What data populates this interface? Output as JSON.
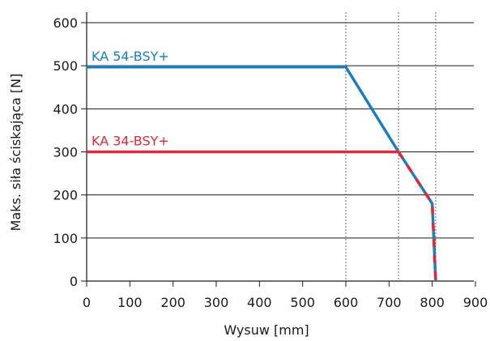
{
  "chart_data": {
    "type": "line",
    "title": "",
    "xlabel": "Wysuw [mm]",
    "ylabel": "Maks. siła ściskająca [N]",
    "xlim": [
      0,
      950
    ],
    "ylim": [
      0,
      600
    ],
    "x_ticks": [
      0,
      100,
      200,
      300,
      400,
      500,
      600,
      700,
      800,
      900
    ],
    "y_ticks": [
      0,
      100,
      200,
      300,
      400,
      500,
      600
    ],
    "x_tick_labels": [
      "0",
      "100",
      "200",
      "300",
      "400",
      "500",
      "600",
      "700",
      "800",
      "900"
    ],
    "y_tick_labels": [
      "0",
      "100",
      "200",
      "300",
      "400",
      "500",
      "600"
    ],
    "grid": {
      "horizontal": true,
      "vertical": false
    },
    "vertical_markers": [
      600,
      722,
      808
    ],
    "series": [
      {
        "name": "KA 54-BSY+",
        "color": "#1a7fc1",
        "x": [
          0,
          600,
          722,
          800,
          808
        ],
        "y": [
          497,
          497,
          300,
          180,
          0
        ]
      },
      {
        "name": "KA 34-BSY+",
        "color": "#e2283c",
        "x": [
          0,
          722,
          800,
          808
        ],
        "y": [
          300,
          300,
          180,
          0
        ]
      }
    ]
  }
}
